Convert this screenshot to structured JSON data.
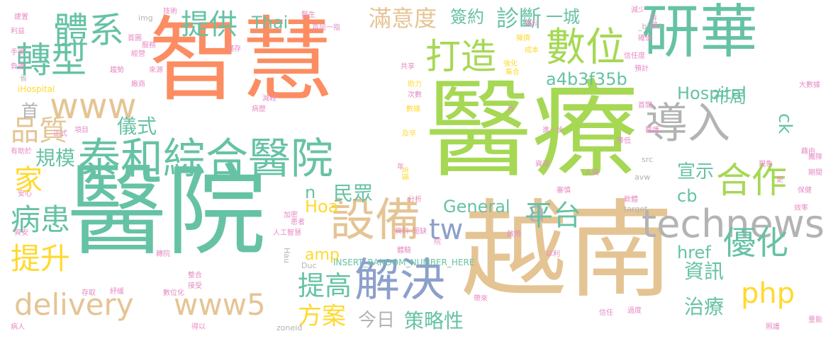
{
  "colors": {
    "orange": "#fc8d62",
    "green": "#a6d854",
    "teal": "#66c2a5",
    "tan": "#e5c494",
    "blue": "#8da0cb",
    "yellow": "#ffd92f",
    "gray": "#b3b3b3",
    "pink": "#e78ac3"
  },
  "words": [
    {
      "text": "醫療"
    },
    {
      "text": "智慧"
    },
    {
      "text": "醫院"
    },
    {
      "text": "越南"
    },
    {
      "text": "研華"
    },
    {
      "text": "泰和綜合醫院"
    },
    {
      "text": "technews"
    },
    {
      "text": "導入"
    },
    {
      "text": "數位"
    },
    {
      "text": "設備"
    },
    {
      "text": "解決"
    },
    {
      "text": "delivery"
    },
    {
      "text": "www5"
    },
    {
      "text": "www"
    },
    {
      "text": "打造"
    },
    {
      "text": "轉型"
    },
    {
      "text": "體系"
    },
    {
      "text": "合作"
    },
    {
      "text": "優化"
    },
    {
      "text": "php"
    },
    {
      "text": "tw"
    },
    {
      "text": "a"
    },
    {
      "text": "提供"
    },
    {
      "text": "品質"
    },
    {
      "text": "家"
    },
    {
      "text": "病患"
    },
    {
      "text": "提升"
    },
    {
      "text": "滿意度"
    },
    {
      "text": "診斷"
    },
    {
      "text": "平台"
    },
    {
      "text": "提高"
    },
    {
      "text": "方案"
    },
    {
      "text": "資訊"
    },
    {
      "text": "治療"
    },
    {
      "text": "Hospital"
    },
    {
      "text": "a4b3f35b"
    },
    {
      "text": "General"
    },
    {
      "text": "一城"
    },
    {
      "text": "簽約"
    },
    {
      "text": "民眾"
    },
    {
      "text": "Hoa"
    },
    {
      "text": "儀式"
    },
    {
      "text": "規模"
    },
    {
      "text": "布局"
    },
    {
      "text": "宣示"
    },
    {
      "text": "策略性"
    },
    {
      "text": "今日"
    },
    {
      "text": "Thai"
    },
    {
      "text": "href"
    },
    {
      "text": "amp"
    },
    {
      "text": "cb"
    },
    {
      "text": "ck"
    },
    {
      "text": "n"
    },
    {
      "text": "首"
    },
    {
      "text": "INSERT_RANDOM_NUMBER_HERE"
    },
    {
      "text": "iHospital"
    },
    {
      "text": "target"
    },
    {
      "text": "_blank"
    },
    {
      "text": "zoneid"
    },
    {
      "text": "avw"
    },
    {
      "text": "src"
    },
    {
      "text": "img"
    },
    {
      "text": "Duc"
    },
    {
      "text": "Hau"
    },
    {
      "text": "人工智慧"
    },
    {
      "text": "資料"
    },
    {
      "text": "短缺"
    },
    {
      "text": "加密"
    },
    {
      "text": "患者"
    },
    {
      "text": "體驗"
    },
    {
      "text": "分析"
    },
    {
      "text": "支援"
    },
    {
      "text": "及早"
    },
    {
      "text": "數據"
    },
    {
      "text": "次數"
    },
    {
      "text": "助力"
    },
    {
      "text": "集合"
    },
    {
      "text": "強化"
    },
    {
      "text": "成本"
    },
    {
      "text": "擁擠"
    },
    {
      "text": "專科"
    },
    {
      "text": "醫生"
    },
    {
      "text": "首屈一指"
    },
    {
      "text": "技術"
    },
    {
      "text": "服務"
    },
    {
      "text": "經營"
    },
    {
      "text": "趨勢"
    },
    {
      "text": "廠商"
    },
    {
      "text": "來源"
    },
    {
      "text": "儲存"
    },
    {
      "text": "減輕"
    },
    {
      "text": "病歷"
    },
    {
      "text": "項目"
    },
    {
      "text": "正式"
    },
    {
      "text": "有助於"
    },
    {
      "text": "安心"
    },
    {
      "text": "資安"
    },
    {
      "text": "整合"
    },
    {
      "text": "接受"
    },
    {
      "text": "數位化"
    },
    {
      "text": "紓緩"
    },
    {
      "text": "存取"
    },
    {
      "text": "轉院"
    },
    {
      "text": "得以"
    },
    {
      "text": "帶來"
    },
    {
      "text": "信任"
    },
    {
      "text": "過度"
    },
    {
      "text": "照護"
    },
    {
      "text": "量能"
    },
    {
      "text": "病人"
    },
    {
      "text": "建置"
    },
    {
      "text": "利益"
    },
    {
      "text": "手術"
    },
    {
      "text": "負擔"
    },
    {
      "text": "首圖"
    },
    {
      "text": "減少"
    },
    {
      "text": "確保"
    },
    {
      "text": "住院"
    },
    {
      "text": "信任度"
    },
    {
      "text": "預計"
    },
    {
      "text": "大數據"
    },
    {
      "text": "共享"
    },
    {
      "text": "月"
    },
    {
      "text": "首間"
    },
    {
      "text": "進一步"
    },
    {
      "text": "醫護"
    },
    {
      "text": "降低"
    },
    {
      "text": "藉由"
    },
    {
      "text": "團隊"
    },
    {
      "text": "現象"
    },
    {
      "text": "期間"
    },
    {
      "text": "更"
    },
    {
      "text": "保健"
    },
    {
      "text": "效率"
    },
    {
      "text": "人員"
    },
    {
      "text": "資深"
    },
    {
      "text": "審慎"
    },
    {
      "text": "軟體"
    },
    {
      "text": "年"
    },
    {
      "text": "以利"
    },
    {
      "text": "院"
    },
    {
      "text": "啟用"
    },
    {
      "text": "省"
    }
  ]
}
